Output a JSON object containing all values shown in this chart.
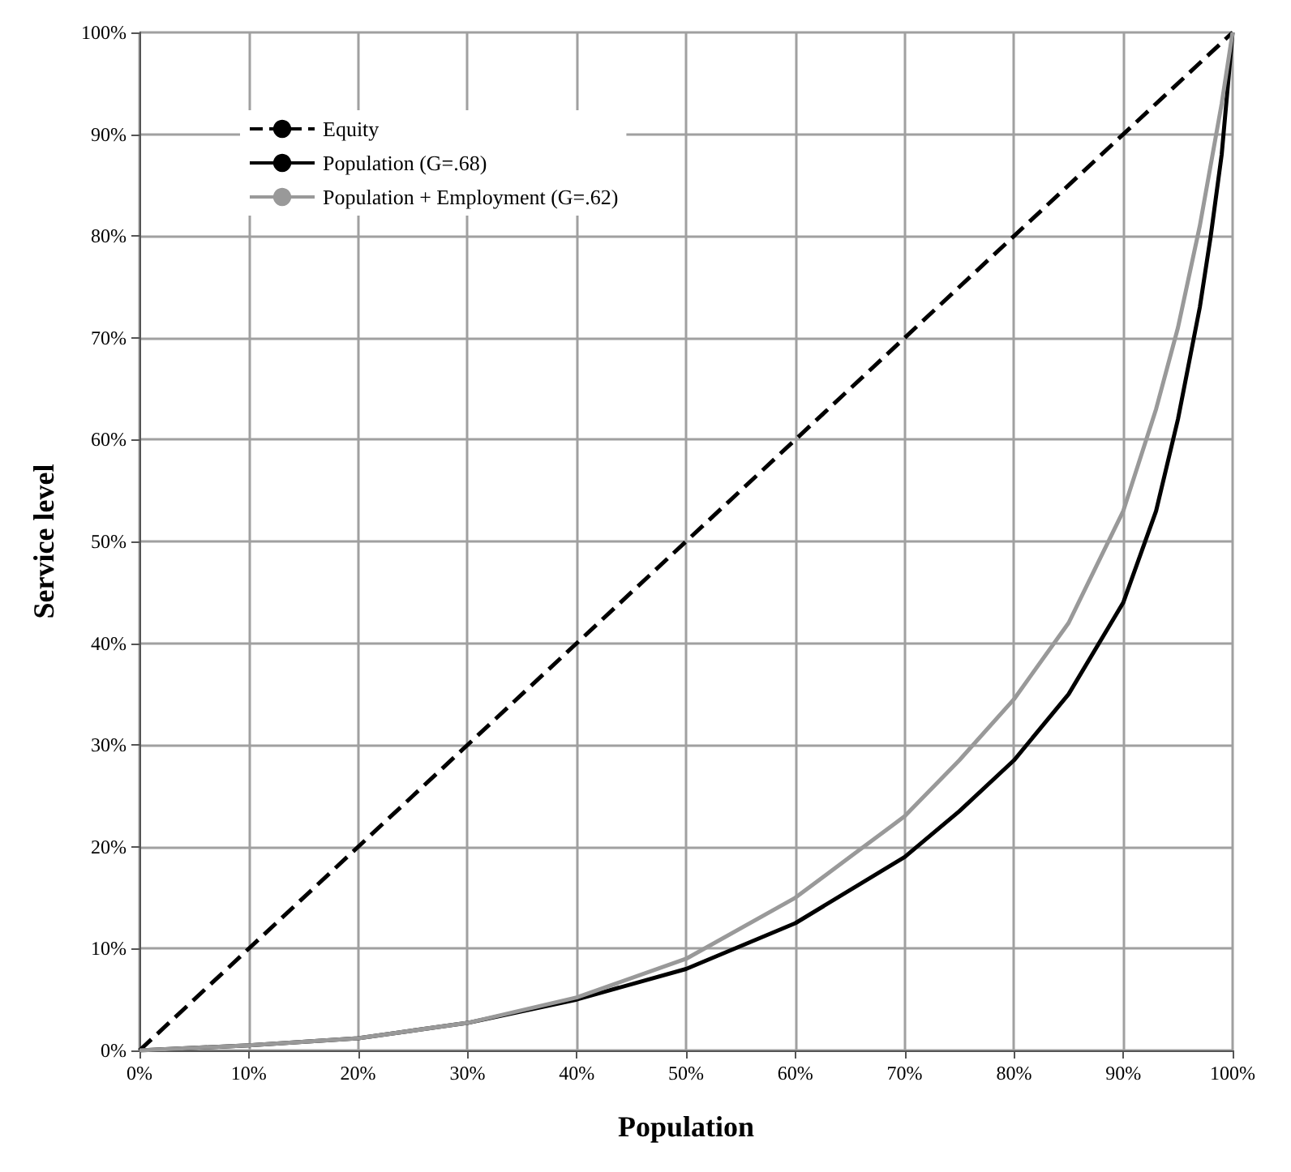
{
  "chart_data": {
    "type": "line",
    "xlabel": "Population",
    "ylabel": "Service level",
    "xlim": [
      0,
      100
    ],
    "ylim": [
      0,
      100
    ],
    "xticks": [
      {
        "value": 0,
        "label": "0%"
      },
      {
        "value": 10,
        "label": "10%"
      },
      {
        "value": 20,
        "label": "20%"
      },
      {
        "value": 30,
        "label": "30%"
      },
      {
        "value": 40,
        "label": "40%"
      },
      {
        "value": 50,
        "label": "50%"
      },
      {
        "value": 60,
        "label": "60%"
      },
      {
        "value": 70,
        "label": "70%"
      },
      {
        "value": 80,
        "label": "80%"
      },
      {
        "value": 90,
        "label": "90%"
      },
      {
        "value": 100,
        "label": "100%"
      }
    ],
    "yticks": [
      {
        "value": 0,
        "label": "0%"
      },
      {
        "value": 10,
        "label": "10%"
      },
      {
        "value": 20,
        "label": "20%"
      },
      {
        "value": 30,
        "label": "30%"
      },
      {
        "value": 40,
        "label": "40%"
      },
      {
        "value": 50,
        "label": "50%"
      },
      {
        "value": 60,
        "label": "60%"
      },
      {
        "value": 70,
        "label": "70%"
      },
      {
        "value": 80,
        "label": "80%"
      },
      {
        "value": 90,
        "label": "90%"
      },
      {
        "value": 100,
        "label": "100%"
      }
    ],
    "grid": true,
    "legend": "top left",
    "marker": "none",
    "series": [
      {
        "name": "Equity",
        "color": "#000000",
        "line_style": "dashed",
        "x": [
          0,
          100
        ],
        "values": [
          0,
          100
        ]
      },
      {
        "name": "Population (G=.68)",
        "color": "#000000",
        "line_style": "solid",
        "x": [
          0,
          10,
          20,
          30,
          40,
          50,
          60,
          70,
          75,
          80,
          85,
          90,
          93,
          95,
          97,
          98,
          99,
          100
        ],
        "values": [
          0,
          0.5,
          1.2,
          2.7,
          5,
          8,
          12.5,
          19,
          23.5,
          28.5,
          35,
          44,
          53,
          62,
          73,
          80,
          88,
          100
        ]
      },
      {
        "name": "Population + Employment (G=.62)",
        "color": "#999999",
        "line_style": "solid",
        "x": [
          0,
          10,
          20,
          30,
          40,
          50,
          60,
          65,
          70,
          75,
          80,
          85,
          90,
          93,
          95,
          97,
          98,
          99,
          100
        ],
        "values": [
          0,
          0.5,
          1.2,
          2.7,
          5.2,
          9,
          15,
          19,
          23,
          28.5,
          34.5,
          42,
          53,
          63,
          71,
          81,
          87,
          93,
          100
        ]
      }
    ]
  }
}
